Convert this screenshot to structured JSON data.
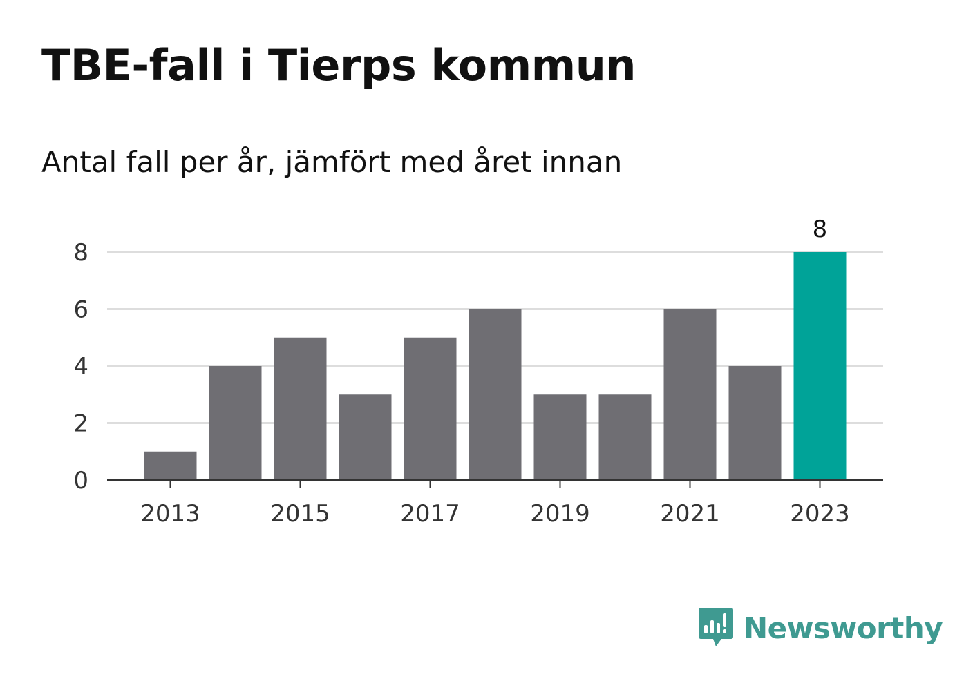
{
  "header": {
    "title": "TBE-fall i Tierps kommun",
    "subtitle": "Antal fall per år, jämfört med året innan"
  },
  "chart_data": {
    "type": "bar",
    "categories": [
      "2013",
      "2014",
      "2015",
      "2016",
      "2017",
      "2018",
      "2019",
      "2020",
      "2021",
      "2022",
      "2023"
    ],
    "values": [
      1,
      4,
      5,
      3,
      5,
      6,
      3,
      3,
      6,
      4,
      8
    ],
    "x_tick_labels": [
      "2013",
      "2015",
      "2017",
      "2019",
      "2021",
      "2023"
    ],
    "y_ticks": [
      0,
      2,
      4,
      6,
      8
    ],
    "ylim": [
      0,
      8
    ],
    "grid": true,
    "highlight_category": "2023",
    "highlight_label": "8",
    "title": "TBE-fall i Tierps kommun",
    "xlabel": "",
    "ylabel": "",
    "colors": {
      "bar": "#6f6e73",
      "highlight": "#00a398",
      "grid": "#dddddd",
      "axis": "#333333"
    }
  },
  "branding": {
    "name": "Newsworthy",
    "icon": "newsworthy-logo-icon",
    "color": "#3f9a91"
  }
}
